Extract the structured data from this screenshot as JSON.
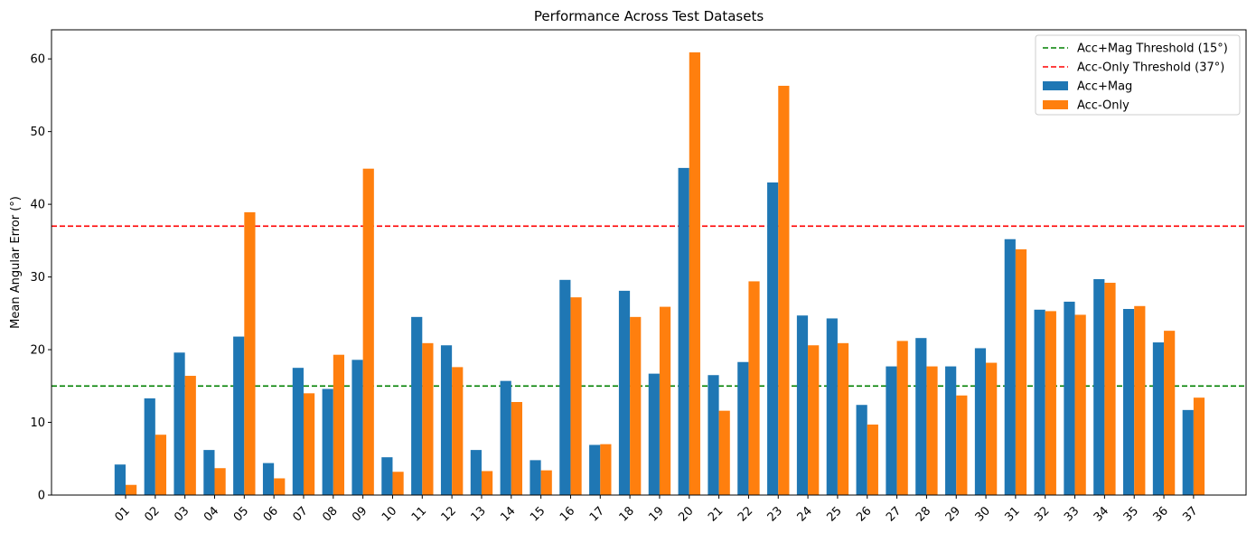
{
  "chart_data": {
    "type": "bar",
    "title": "Performance Across Test Datasets",
    "xlabel": "",
    "ylabel": "Mean Angular Error (°)",
    "ylim": [
      0,
      64
    ],
    "yticks": [
      0,
      10,
      20,
      30,
      40,
      50,
      60
    ],
    "categories": [
      "01",
      "02",
      "03",
      "04",
      "05",
      "06",
      "07",
      "08",
      "09",
      "10",
      "11",
      "12",
      "13",
      "14",
      "15",
      "16",
      "17",
      "18",
      "19",
      "20",
      "21",
      "22",
      "23",
      "24",
      "25",
      "26",
      "27",
      "28",
      "29",
      "30",
      "31",
      "32",
      "33",
      "34",
      "35",
      "36",
      "37"
    ],
    "series": [
      {
        "name": "Acc+Mag",
        "color": "#1f77b4",
        "values": [
          4.2,
          13.3,
          19.6,
          6.2,
          21.8,
          4.4,
          17.5,
          14.6,
          18.6,
          5.2,
          24.5,
          20.6,
          6.2,
          15.7,
          4.8,
          29.6,
          6.9,
          28.1,
          16.7,
          45.0,
          16.5,
          18.3,
          43.0,
          24.7,
          24.3,
          12.4,
          17.7,
          21.6,
          17.7,
          20.2,
          35.2,
          25.5,
          26.6,
          29.7,
          25.6,
          21.0,
          11.7
        ]
      },
      {
        "name": "Acc-Only",
        "color": "#ff7f0e",
        "values": [
          1.4,
          8.3,
          16.4,
          3.7,
          38.9,
          2.3,
          14.0,
          19.3,
          44.9,
          3.2,
          20.9,
          17.6,
          3.3,
          12.8,
          3.4,
          27.2,
          7.0,
          24.5,
          25.9,
          60.9,
          11.6,
          29.4,
          56.3,
          20.6,
          20.9,
          9.7,
          21.2,
          17.7,
          13.7,
          18.2,
          33.8,
          25.3,
          24.8,
          29.2,
          26.0,
          22.6,
          13.4
        ]
      }
    ],
    "thresholds": [
      {
        "name": "Acc+Mag Threshold (15°)",
        "value": 15,
        "color": "#008000"
      },
      {
        "name": "Acc-Only Threshold (37°)",
        "value": 37,
        "color": "#ff0000"
      }
    ],
    "legend": {
      "position": "top-right",
      "entries": [
        "Acc+Mag Threshold (15°)",
        "Acc-Only Threshold (37°)",
        "Acc+Mag",
        "Acc-Only"
      ]
    },
    "grid": false
  }
}
